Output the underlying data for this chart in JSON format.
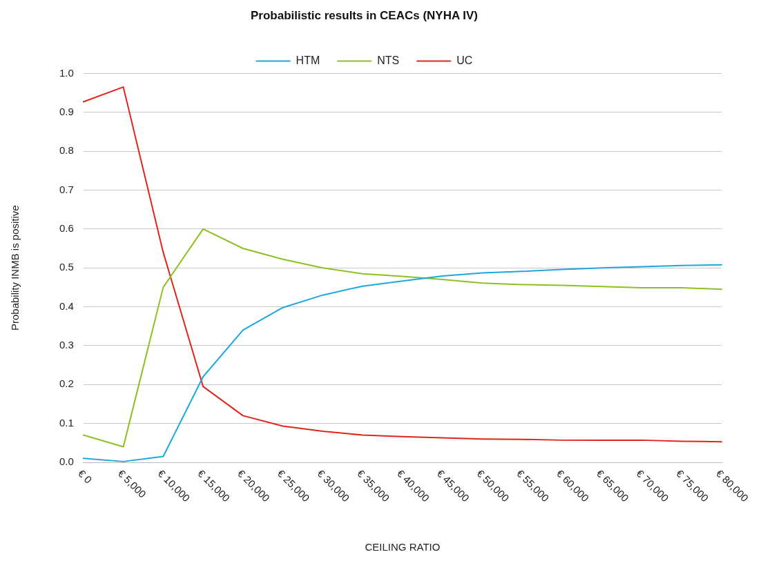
{
  "chart_data": {
    "type": "line",
    "title": "Probabilistic results in CEACs (NYHA IV)",
    "xlabel": "CEILING RATIO",
    "ylabel": "Probability INMB is positive",
    "categories": [
      "€ 0",
      "€ 5,000",
      "€ 10,000",
      "€ 15,000",
      "€ 20,000",
      "€ 25,000",
      "€ 30,000",
      "€ 35,000",
      "€ 40,000",
      "€ 45,000",
      "€ 50,000",
      "€ 55,000",
      "€ 60,000",
      "€ 65,000",
      "€ 70,000",
      "€ 75,000",
      "€ 80,000"
    ],
    "series": [
      {
        "name": "HTM",
        "color": "#1aa7e0",
        "values": [
          0.01,
          0.002,
          0.015,
          0.22,
          0.34,
          0.398,
          0.43,
          0.453,
          0.466,
          0.479,
          0.487,
          0.491,
          0.496,
          0.5,
          0.503,
          0.506,
          0.508
        ]
      },
      {
        "name": "NTS",
        "color": "#8cbf1f",
        "values": [
          0.07,
          0.04,
          0.45,
          0.6,
          0.55,
          0.522,
          0.5,
          0.485,
          0.478,
          0.47,
          0.461,
          0.457,
          0.455,
          0.452,
          0.449,
          0.449,
          0.445
        ]
      },
      {
        "name": "UC",
        "color": "#e2231a",
        "values": [
          0.927,
          0.965,
          0.54,
          0.195,
          0.12,
          0.093,
          0.08,
          0.07,
          0.066,
          0.063,
          0.06,
          0.059,
          0.057,
          0.057,
          0.057,
          0.054,
          0.053
        ]
      }
    ],
    "ylim": [
      0,
      1
    ],
    "yticks": [
      {
        "value": 0,
        "label": "0.0"
      },
      0.1,
      0.2,
      0.3,
      0.4,
      0.5,
      0.6,
      0.7,
      0.8,
      0.9,
      {
        "value": 1,
        "label": "1.0"
      }
    ],
    "grid": "y",
    "legend": "top",
    "marker": "none",
    "line_style": "solid"
  }
}
